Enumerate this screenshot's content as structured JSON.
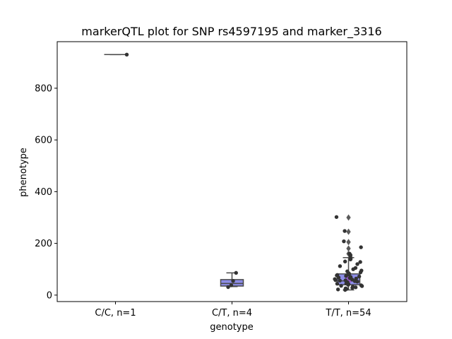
{
  "chart_data": {
    "type": "boxplot",
    "title": "markerQTL plot for SNP rs4597195 and marker_3316",
    "xlabel": "genotype",
    "ylabel": "phenotype",
    "ylim": [
      -25,
      980
    ],
    "yticks": [
      0,
      200,
      400,
      600,
      800
    ],
    "grid": false,
    "colors": {
      "box": "#8c8ce6",
      "box_edge": "#4a4a4a",
      "point": "#333333",
      "outlier": "#5a5a5a",
      "violin_line": "#9b59d0"
    },
    "groups": [
      {
        "label": "C/C, n=1",
        "box": {
          "q1": 930,
          "median": 930,
          "q3": 930,
          "whisker_low": 930,
          "whisker_high": 930
        },
        "outliers": [],
        "points": [
          930
        ]
      },
      {
        "label": "C/T, n=4",
        "box": {
          "q1": 35,
          "median": 45,
          "q3": 60,
          "whisker_low": 33,
          "whisker_high": 86
        },
        "outliers": [],
        "points": [
          86,
          55,
          38,
          31
        ]
      },
      {
        "label": "T/T, n=54",
        "box": {
          "q1": 40,
          "median": 55,
          "q3": 82,
          "whisker_low": 20,
          "whisker_high": 145
        },
        "outliers": [
          300,
          245,
          205,
          180,
          160
        ],
        "points": [
          302,
          248,
          208,
          185,
          160,
          155,
          150,
          140,
          138,
          130,
          128,
          120,
          112,
          105,
          100,
          95,
          92,
          88,
          85,
          82,
          80,
          78,
          76,
          74,
          72,
          70,
          68,
          66,
          64,
          62,
          60,
          58,
          57,
          56,
          55,
          54,
          52,
          50,
          48,
          46,
          45,
          44,
          42,
          40,
          38,
          36,
          35,
          33,
          30,
          28,
          26,
          24,
          22,
          20
        ]
      }
    ]
  }
}
